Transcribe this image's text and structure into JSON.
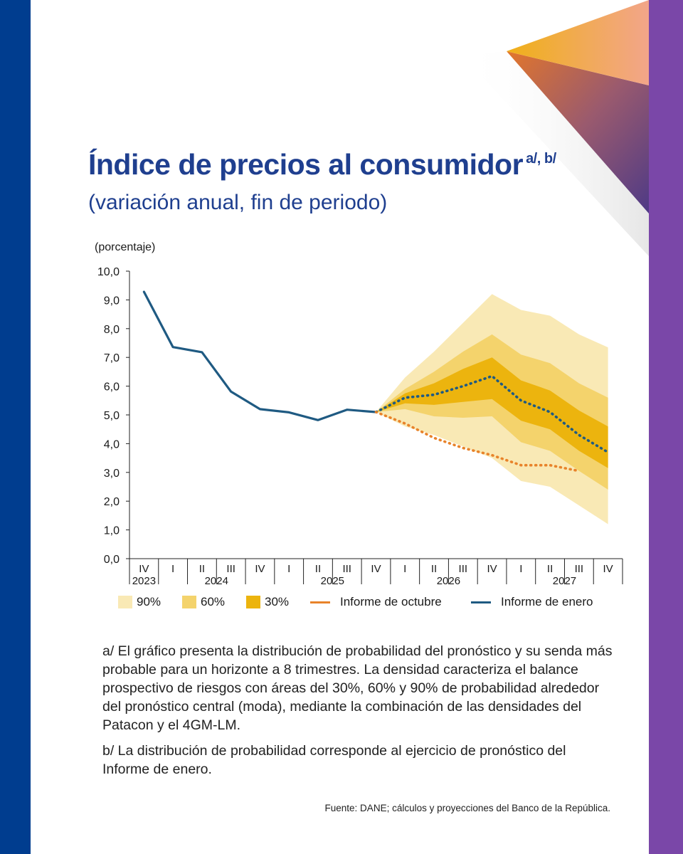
{
  "title": "Índice de precios al consumidor",
  "title_superscript": "a/, b/",
  "subtitle": "(variación anual, fin de periodo)",
  "colors": {
    "left_bar": "#003d8f",
    "right_bar": "#7a47a8",
    "title": "#1f3f8f",
    "line_enero": "#1f5a82",
    "line_octubre": "#e8832a",
    "band90": "#f9e9b5",
    "band60": "#f4d36c",
    "band30": "#ecb40e"
  },
  "chart_data": {
    "type": "line",
    "ylabel": "(porcentaje)",
    "ylim": [
      0,
      10
    ],
    "yticks": [
      "0,0",
      "1,0",
      "2,0",
      "3,0",
      "4,0",
      "5,0",
      "6,0",
      "7,0",
      "8,0",
      "9,0",
      "10,0"
    ],
    "quarter_labels": [
      "IV",
      "I",
      "II",
      "III",
      "IV",
      "I",
      "II",
      "III",
      "IV",
      "I",
      "II",
      "III",
      "IV",
      "I",
      "II",
      "III",
      "IV"
    ],
    "year_labels": [
      {
        "label": "2023",
        "index": 0
      },
      {
        "label": "2024",
        "index": 2.5
      },
      {
        "label": "2025",
        "index": 6.5
      },
      {
        "label": "2026",
        "index": 10.5
      },
      {
        "label": "2027",
        "index": 14.5
      }
    ],
    "series": [
      {
        "name": "Informe de enero",
        "style": "solid",
        "start_index": 0,
        "values": [
          9.28,
          7.36,
          7.18,
          5.81,
          5.2,
          5.09,
          4.82,
          5.18,
          5.1
        ]
      },
      {
        "name": "Informe de enero (pronóstico)",
        "style": "dotted",
        "start_index": 8,
        "values": [
          5.1,
          5.6,
          5.7,
          6.0,
          6.35,
          5.5,
          5.1,
          4.3,
          3.7
        ]
      },
      {
        "name": "Informe de octubre",
        "style": "dotted",
        "start_index": 8,
        "values": [
          5.1,
          4.7,
          4.2,
          3.85,
          3.6,
          3.25,
          3.25,
          3.05
        ]
      }
    ],
    "fan": {
      "start_index": 8,
      "band90": {
        "lower": [
          5.1,
          4.6,
          4.3,
          3.9,
          3.5,
          2.7,
          2.5,
          1.85,
          1.2
        ],
        "upper": [
          5.1,
          6.3,
          7.2,
          8.2,
          9.2,
          8.65,
          8.45,
          7.8,
          7.35
        ]
      },
      "band60": {
        "lower": [
          5.1,
          5.2,
          4.95,
          4.9,
          4.95,
          4.05,
          3.75,
          3.05,
          2.4
        ],
        "upper": [
          5.1,
          5.9,
          6.5,
          7.2,
          7.8,
          7.1,
          6.8,
          6.1,
          5.6
        ]
      },
      "band30": {
        "lower": [
          5.1,
          5.4,
          5.35,
          5.45,
          5.55,
          4.8,
          4.5,
          3.75,
          3.15
        ],
        "upper": [
          5.1,
          5.75,
          6.1,
          6.6,
          7.0,
          6.2,
          5.85,
          5.15,
          4.6
        ]
      }
    }
  },
  "legend": {
    "band90": "90%",
    "band60": "60%",
    "band30": "30%",
    "octubre": "Informe de octubre",
    "enero": "Informe de enero"
  },
  "notes": {
    "a": "a/ El gráfico presenta la distribución de probabilidad del pronóstico y su senda más probable para un horizonte a 8 trimestres. La densidad caracteriza el balance prospectivo de riesgos con áreas del 30%, 60% y 90% de probabilidad alrededor del pronóstico central (moda), mediante la combinación de las densidades del Patacon y el 4GM-LM.",
    "b": "b/ La distribución de probabilidad corresponde al ejercicio de pronóstico del Informe de enero."
  },
  "source": "Fuente: DANE; cálculos y proyecciones del Banco de la República."
}
